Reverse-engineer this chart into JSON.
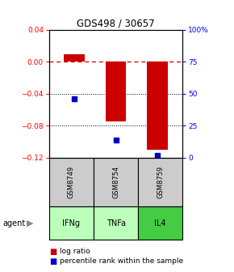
{
  "title": "GDS498 / 30657",
  "samples": [
    "GSM8749",
    "GSM8754",
    "GSM8759"
  ],
  "agents": [
    "IFNg",
    "TNFa",
    "IL4"
  ],
  "log_ratios": [
    0.01,
    -0.075,
    -0.11
  ],
  "percentile_ranks": [
    46,
    14,
    2
  ],
  "ylim_left": [
    -0.12,
    0.04
  ],
  "ylim_right": [
    0,
    100
  ],
  "yticks_left": [
    0.04,
    0,
    -0.04,
    -0.08,
    -0.12
  ],
  "yticks_right": [
    100,
    75,
    50,
    25,
    0
  ],
  "bar_color": "#cc0000",
  "dot_color": "#0000cc",
  "agent_colors": [
    "#bbffbb",
    "#bbffbb",
    "#44cc44"
  ],
  "sample_bg": "#cccccc",
  "zero_line_color": "#cc0000",
  "bar_width": 0.5,
  "legend_bar_color": "#cc0000",
  "legend_dot_color": "#0000cc"
}
